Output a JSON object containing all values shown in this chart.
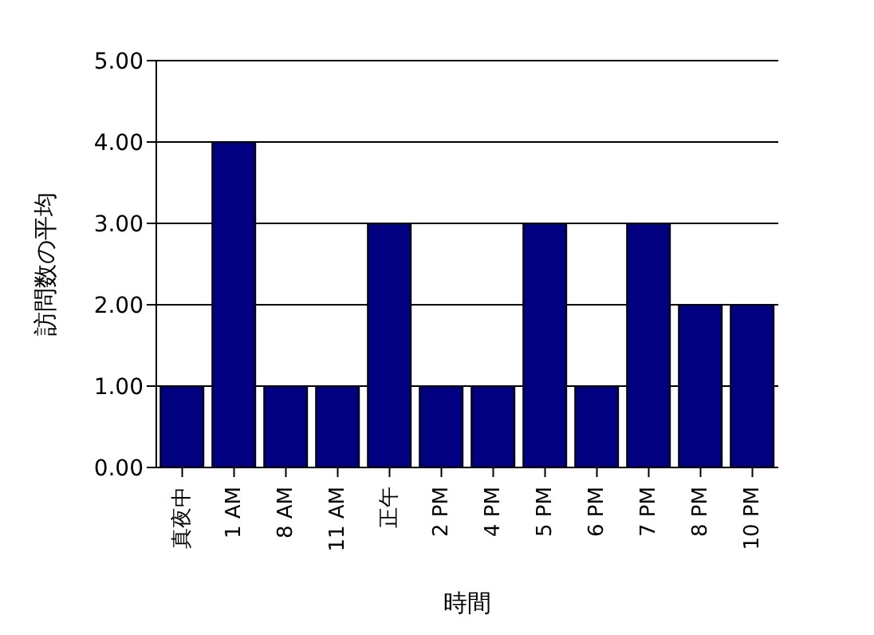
{
  "chart_data": {
    "type": "bar",
    "xlabel": "時間",
    "ylabel": "訪問数の平均",
    "categories": [
      "真夜中",
      "1 AM",
      "8 AM",
      "11 AM",
      "正午",
      "2 PM",
      "4 PM",
      "5 PM",
      "6 PM",
      "7 PM",
      "8 PM",
      "10 PM"
    ],
    "values": [
      1,
      4,
      1,
      1,
      3,
      1,
      1,
      3,
      1,
      3,
      2,
      2
    ],
    "color": "#000080",
    "ylim": [
      0,
      5
    ],
    "yticks": [
      {
        "value": 0,
        "label": "0.00"
      },
      {
        "value": 1,
        "label": "1.00"
      },
      {
        "value": 2,
        "label": "2.00"
      },
      {
        "value": 3,
        "label": "3.00"
      },
      {
        "value": 4,
        "label": "4.00"
      },
      {
        "value": 5,
        "label": "5.00"
      }
    ],
    "grid": "y"
  }
}
